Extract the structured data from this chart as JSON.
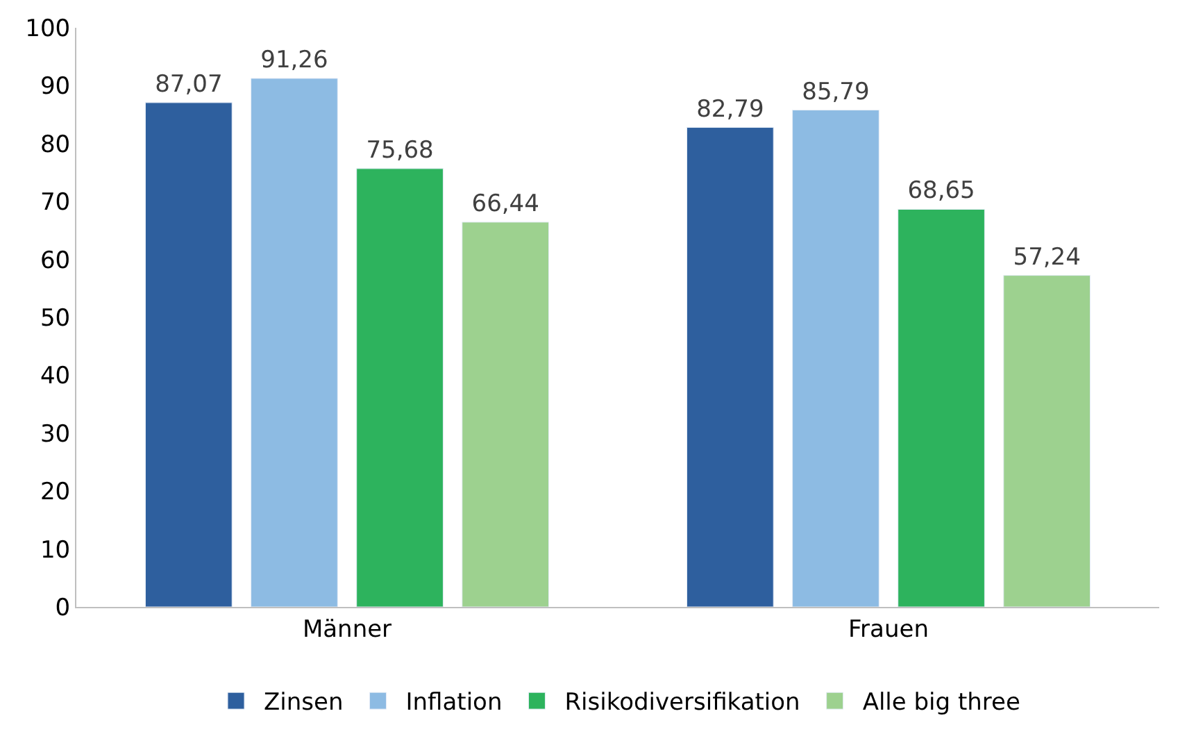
{
  "chart_data": {
    "type": "bar",
    "categories": [
      "Männer",
      "Frauen"
    ],
    "series": [
      {
        "name": "Zinsen",
        "color": "#2e5f9e",
        "values": [
          87.07,
          82.79
        ],
        "value_labels": [
          "87,07",
          "82,79"
        ]
      },
      {
        "name": "Inflation",
        "color": "#8dbbe3",
        "values": [
          91.26,
          85.79
        ],
        "value_labels": [
          "91,26",
          "85,79"
        ]
      },
      {
        "name": "Risikodiversifikation",
        "color": "#2db35d",
        "values": [
          75.68,
          68.65
        ],
        "value_labels": [
          "75,68",
          "68,65"
        ]
      },
      {
        "name": "Alle big three",
        "color": "#9dd18f",
        "values": [
          66.44,
          57.24
        ],
        "value_labels": [
          "66,44",
          "57,24"
        ]
      }
    ],
    "ylim": [
      0,
      100
    ],
    "yticks": [
      0,
      10,
      20,
      30,
      40,
      50,
      60,
      70,
      80,
      90,
      100
    ],
    "grid": false,
    "legend": "bottom"
  }
}
